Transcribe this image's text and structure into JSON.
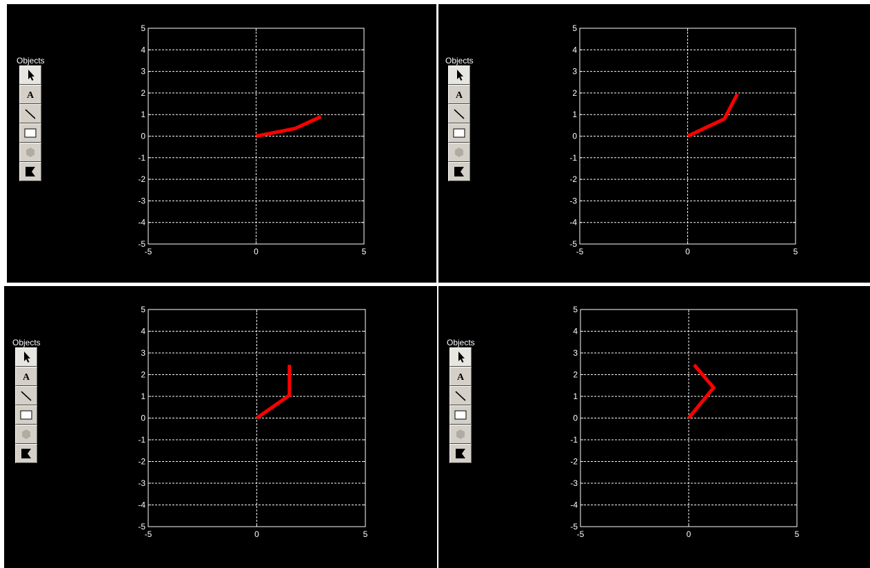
{
  "toolbox": {
    "label": "Objects",
    "tools": [
      {
        "icon": "pointer-arrow-icon",
        "name": "select-tool"
      },
      {
        "icon": "text-a-icon",
        "name": "text-tool"
      },
      {
        "icon": "diagonal-line-icon",
        "name": "line-tool"
      },
      {
        "icon": "rectangle-icon",
        "name": "rectangle-tool"
      },
      {
        "icon": "hexagon-icon",
        "name": "polygon-tool",
        "disabled": true
      },
      {
        "icon": "flag-icon",
        "name": "patch-tool"
      }
    ]
  },
  "colors": {
    "line": "#ff0000",
    "background": "#000000",
    "axes": "#ffffff",
    "grid": "#ffffff"
  },
  "chart_data": [
    {
      "type": "line",
      "xlim": [
        -5,
        5
      ],
      "ylim": [
        -5,
        5
      ],
      "xticks": [
        "-5",
        "0",
        "5"
      ],
      "yticks": [
        "5",
        "4",
        "3",
        "2",
        "1",
        "0",
        "-1",
        "-2",
        "-3",
        "-4",
        "-5"
      ],
      "grid": "dashed horizontal lines; dashed vertical at x=0",
      "series": [
        {
          "x": [
            0,
            1.8,
            3.0
          ],
          "y": [
            0,
            0.35,
            0.9
          ]
        }
      ]
    },
    {
      "type": "line",
      "xlim": [
        -5,
        5
      ],
      "ylim": [
        -5,
        5
      ],
      "xticks": [
        "-5",
        "0",
        "5"
      ],
      "yticks": [
        "5",
        "4",
        "3",
        "2",
        "1",
        "0",
        "-1",
        "-2",
        "-3",
        "-4",
        "-5"
      ],
      "grid": "dashed horizontal lines; dashed vertical at x=0",
      "series": [
        {
          "x": [
            0,
            1.7,
            2.3
          ],
          "y": [
            0,
            0.8,
            1.95
          ]
        }
      ]
    },
    {
      "type": "line",
      "xlim": [
        -5,
        5
      ],
      "ylim": [
        -5,
        5
      ],
      "xticks": [
        "-5",
        "0",
        "5"
      ],
      "yticks": [
        "5",
        "4",
        "3",
        "2",
        "1",
        "0",
        "-1",
        "-2",
        "-3",
        "-4",
        "-5"
      ],
      "grid": "dashed horizontal lines; dashed vertical at x=0",
      "series": [
        {
          "x": [
            0,
            1.5,
            1.5
          ],
          "y": [
            0,
            1.05,
            2.45
          ]
        }
      ]
    },
    {
      "type": "line",
      "xlim": [
        -5,
        5
      ],
      "ylim": [
        -5,
        5
      ],
      "xticks": [
        "-5",
        "0",
        "5"
      ],
      "yticks": [
        "5",
        "4",
        "3",
        "2",
        "1",
        "0",
        "-1",
        "-2",
        "-3",
        "-4",
        "-5"
      ],
      "grid": "dashed horizontal lines; dashed vertical at x=0",
      "series": [
        {
          "x": [
            0,
            1.15,
            0.25
          ],
          "y": [
            0,
            1.4,
            2.45
          ]
        }
      ]
    }
  ]
}
